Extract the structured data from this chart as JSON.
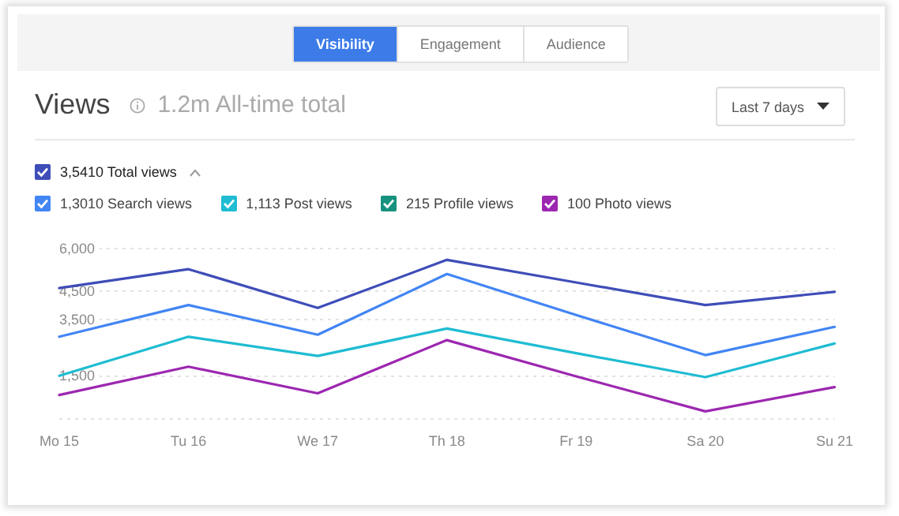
{
  "chart_data": {
    "type": "line",
    "title": "Views",
    "subtitle": "1.2m All-time total",
    "annotations": [
      "Visibility",
      "Engagement",
      "Audience",
      "Last 7 days"
    ],
    "categories": [
      "Mo 15",
      "Tu 16",
      "We 17",
      "Th 18",
      "Fr 19",
      "Sa 20",
      "Su 21"
    ],
    "series": [
      {
        "name": "3,5410 Total views",
        "color": "#3f4db8",
        "values": [
          4600,
          5270,
          3900,
          5600,
          4800,
          4000,
          4470
        ]
      },
      {
        "name": "1,3010 Search views",
        "color": "#4285f4",
        "values": [
          2880,
          4000,
          2950,
          5100,
          3650,
          2230,
          3230
        ]
      },
      {
        "name": "1,113 Post views",
        "color": "#1fbcd2",
        "values": [
          1500,
          2880,
          2200,
          3170,
          2300,
          1450,
          2640
        ]
      },
      {
        "name": "215 Profile views",
        "color": "#17927f",
        "values": [
          null,
          null,
          null,
          null,
          null,
          null,
          null
        ]
      },
      {
        "name": "100 Photo views",
        "color": "#9c27b0",
        "values": [
          820,
          1820,
          880,
          2760,
          1480,
          240,
          1100
        ]
      }
    ],
    "ylim": [
      0,
      6000
    ],
    "yticks": [
      {
        "value": 0,
        "label": null
      },
      {
        "value": 1500,
        "label": "1,500"
      },
      {
        "value": 3500,
        "label": "3,500"
      },
      {
        "value": 4500,
        "label": "4,500"
      },
      {
        "value": 6000,
        "label": "6,000"
      }
    ],
    "grid": "y",
    "legend": "top left",
    "marker": "none",
    "line_style": "solid"
  }
}
